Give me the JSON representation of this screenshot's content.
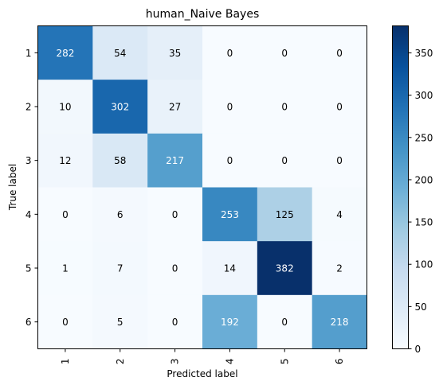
{
  "chart_data": {
    "type": "heatmap",
    "title": "human_Naive Bayes",
    "xlabel": "Predicted label",
    "ylabel": "True label",
    "x_categories": [
      "1",
      "2",
      "3",
      "4",
      "5",
      "6"
    ],
    "y_categories": [
      "1",
      "2",
      "3",
      "4",
      "5",
      "6"
    ],
    "matrix": [
      [
        282,
        54,
        35,
        0,
        0,
        0
      ],
      [
        10,
        302,
        27,
        0,
        0,
        0
      ],
      [
        12,
        58,
        217,
        0,
        0,
        0
      ],
      [
        0,
        6,
        0,
        253,
        125,
        4
      ],
      [
        1,
        7,
        0,
        14,
        382,
        2
      ],
      [
        0,
        5,
        0,
        192,
        0,
        218
      ]
    ],
    "colormap": "Blues",
    "value_range": [
      0,
      382
    ],
    "colorbar_ticks": [
      0,
      50,
      100,
      150,
      200,
      250,
      300,
      350
    ]
  }
}
